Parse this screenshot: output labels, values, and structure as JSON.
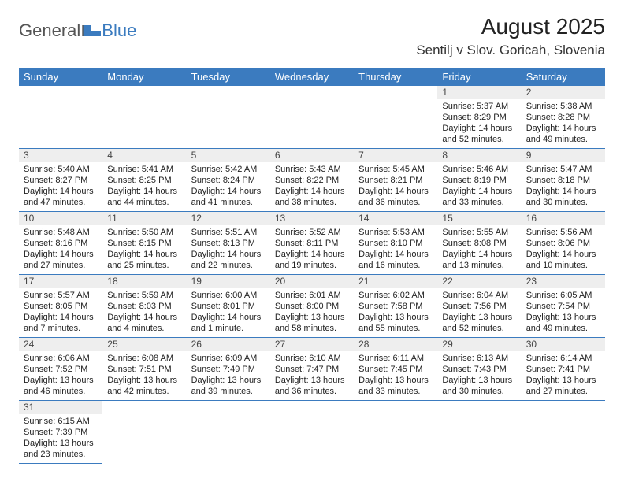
{
  "logo": {
    "general": "General",
    "blue": "Blue"
  },
  "title": "August 2025",
  "location": "Sentilj v Slov. Goricah, Slovenia",
  "header_bg": "#3b7bbf",
  "header_fg": "#ffffff",
  "day_bg": "#eeeeee",
  "border_color": "#3b7bbf",
  "weekdays": [
    "Sunday",
    "Monday",
    "Tuesday",
    "Wednesday",
    "Thursday",
    "Friday",
    "Saturday"
  ],
  "weeks": [
    [
      null,
      null,
      null,
      null,
      null,
      {
        "n": "1",
        "sr": "Sunrise: 5:37 AM",
        "ss": "Sunset: 8:29 PM",
        "d1": "Daylight: 14 hours",
        "d2": "and 52 minutes."
      },
      {
        "n": "2",
        "sr": "Sunrise: 5:38 AM",
        "ss": "Sunset: 8:28 PM",
        "d1": "Daylight: 14 hours",
        "d2": "and 49 minutes."
      }
    ],
    [
      {
        "n": "3",
        "sr": "Sunrise: 5:40 AM",
        "ss": "Sunset: 8:27 PM",
        "d1": "Daylight: 14 hours",
        "d2": "and 47 minutes."
      },
      {
        "n": "4",
        "sr": "Sunrise: 5:41 AM",
        "ss": "Sunset: 8:25 PM",
        "d1": "Daylight: 14 hours",
        "d2": "and 44 minutes."
      },
      {
        "n": "5",
        "sr": "Sunrise: 5:42 AM",
        "ss": "Sunset: 8:24 PM",
        "d1": "Daylight: 14 hours",
        "d2": "and 41 minutes."
      },
      {
        "n": "6",
        "sr": "Sunrise: 5:43 AM",
        "ss": "Sunset: 8:22 PM",
        "d1": "Daylight: 14 hours",
        "d2": "and 38 minutes."
      },
      {
        "n": "7",
        "sr": "Sunrise: 5:45 AM",
        "ss": "Sunset: 8:21 PM",
        "d1": "Daylight: 14 hours",
        "d2": "and 36 minutes."
      },
      {
        "n": "8",
        "sr": "Sunrise: 5:46 AM",
        "ss": "Sunset: 8:19 PM",
        "d1": "Daylight: 14 hours",
        "d2": "and 33 minutes."
      },
      {
        "n": "9",
        "sr": "Sunrise: 5:47 AM",
        "ss": "Sunset: 8:18 PM",
        "d1": "Daylight: 14 hours",
        "d2": "and 30 minutes."
      }
    ],
    [
      {
        "n": "10",
        "sr": "Sunrise: 5:48 AM",
        "ss": "Sunset: 8:16 PM",
        "d1": "Daylight: 14 hours",
        "d2": "and 27 minutes."
      },
      {
        "n": "11",
        "sr": "Sunrise: 5:50 AM",
        "ss": "Sunset: 8:15 PM",
        "d1": "Daylight: 14 hours",
        "d2": "and 25 minutes."
      },
      {
        "n": "12",
        "sr": "Sunrise: 5:51 AM",
        "ss": "Sunset: 8:13 PM",
        "d1": "Daylight: 14 hours",
        "d2": "and 22 minutes."
      },
      {
        "n": "13",
        "sr": "Sunrise: 5:52 AM",
        "ss": "Sunset: 8:11 PM",
        "d1": "Daylight: 14 hours",
        "d2": "and 19 minutes."
      },
      {
        "n": "14",
        "sr": "Sunrise: 5:53 AM",
        "ss": "Sunset: 8:10 PM",
        "d1": "Daylight: 14 hours",
        "d2": "and 16 minutes."
      },
      {
        "n": "15",
        "sr": "Sunrise: 5:55 AM",
        "ss": "Sunset: 8:08 PM",
        "d1": "Daylight: 14 hours",
        "d2": "and 13 minutes."
      },
      {
        "n": "16",
        "sr": "Sunrise: 5:56 AM",
        "ss": "Sunset: 8:06 PM",
        "d1": "Daylight: 14 hours",
        "d2": "and 10 minutes."
      }
    ],
    [
      {
        "n": "17",
        "sr": "Sunrise: 5:57 AM",
        "ss": "Sunset: 8:05 PM",
        "d1": "Daylight: 14 hours",
        "d2": "and 7 minutes."
      },
      {
        "n": "18",
        "sr": "Sunrise: 5:59 AM",
        "ss": "Sunset: 8:03 PM",
        "d1": "Daylight: 14 hours",
        "d2": "and 4 minutes."
      },
      {
        "n": "19",
        "sr": "Sunrise: 6:00 AM",
        "ss": "Sunset: 8:01 PM",
        "d1": "Daylight: 14 hours",
        "d2": "and 1 minute."
      },
      {
        "n": "20",
        "sr": "Sunrise: 6:01 AM",
        "ss": "Sunset: 8:00 PM",
        "d1": "Daylight: 13 hours",
        "d2": "and 58 minutes."
      },
      {
        "n": "21",
        "sr": "Sunrise: 6:02 AM",
        "ss": "Sunset: 7:58 PM",
        "d1": "Daylight: 13 hours",
        "d2": "and 55 minutes."
      },
      {
        "n": "22",
        "sr": "Sunrise: 6:04 AM",
        "ss": "Sunset: 7:56 PM",
        "d1": "Daylight: 13 hours",
        "d2": "and 52 minutes."
      },
      {
        "n": "23",
        "sr": "Sunrise: 6:05 AM",
        "ss": "Sunset: 7:54 PM",
        "d1": "Daylight: 13 hours",
        "d2": "and 49 minutes."
      }
    ],
    [
      {
        "n": "24",
        "sr": "Sunrise: 6:06 AM",
        "ss": "Sunset: 7:52 PM",
        "d1": "Daylight: 13 hours",
        "d2": "and 46 minutes."
      },
      {
        "n": "25",
        "sr": "Sunrise: 6:08 AM",
        "ss": "Sunset: 7:51 PM",
        "d1": "Daylight: 13 hours",
        "d2": "and 42 minutes."
      },
      {
        "n": "26",
        "sr": "Sunrise: 6:09 AM",
        "ss": "Sunset: 7:49 PM",
        "d1": "Daylight: 13 hours",
        "d2": "and 39 minutes."
      },
      {
        "n": "27",
        "sr": "Sunrise: 6:10 AM",
        "ss": "Sunset: 7:47 PM",
        "d1": "Daylight: 13 hours",
        "d2": "and 36 minutes."
      },
      {
        "n": "28",
        "sr": "Sunrise: 6:11 AM",
        "ss": "Sunset: 7:45 PM",
        "d1": "Daylight: 13 hours",
        "d2": "and 33 minutes."
      },
      {
        "n": "29",
        "sr": "Sunrise: 6:13 AM",
        "ss": "Sunset: 7:43 PM",
        "d1": "Daylight: 13 hours",
        "d2": "and 30 minutes."
      },
      {
        "n": "30",
        "sr": "Sunrise: 6:14 AM",
        "ss": "Sunset: 7:41 PM",
        "d1": "Daylight: 13 hours",
        "d2": "and 27 minutes."
      }
    ],
    [
      {
        "n": "31",
        "sr": "Sunrise: 6:15 AM",
        "ss": "Sunset: 7:39 PM",
        "d1": "Daylight: 13 hours",
        "d2": "and 23 minutes."
      },
      null,
      null,
      null,
      null,
      null,
      null
    ]
  ]
}
